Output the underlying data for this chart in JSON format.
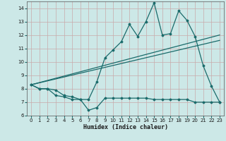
{
  "xlabel": "Humidex (Indice chaleur)",
  "xlim": [
    -0.5,
    23.5
  ],
  "ylim": [
    6,
    14.5
  ],
  "yticks": [
    6,
    7,
    8,
    9,
    10,
    11,
    12,
    13,
    14
  ],
  "xticks": [
    0,
    1,
    2,
    3,
    4,
    5,
    6,
    7,
    8,
    9,
    10,
    11,
    12,
    13,
    14,
    15,
    16,
    17,
    18,
    19,
    20,
    21,
    22,
    23
  ],
  "bg_color": "#cce8e7",
  "grid_color": "#b8d8d6",
  "line_color": "#1a6b6b",
  "main_x": [
    0,
    1,
    2,
    3,
    4,
    5,
    6,
    7,
    8,
    9,
    10,
    11,
    12,
    13,
    14,
    15,
    16,
    17,
    18,
    19,
    20,
    21,
    22,
    23
  ],
  "main_y": [
    8.3,
    8.0,
    8.0,
    7.9,
    7.5,
    7.4,
    7.2,
    7.2,
    8.5,
    10.3,
    10.9,
    11.5,
    12.8,
    11.9,
    13.0,
    14.4,
    12.0,
    12.1,
    13.8,
    13.1,
    11.9,
    9.7,
    8.2,
    7.0
  ],
  "min_x": [
    0,
    1,
    2,
    3,
    4,
    5,
    6,
    7,
    8,
    9,
    10,
    11,
    12,
    13,
    14,
    15,
    16,
    17,
    18,
    19,
    20,
    21,
    22,
    23
  ],
  "min_y": [
    8.3,
    8.0,
    8.0,
    7.5,
    7.4,
    7.2,
    7.2,
    6.4,
    6.6,
    7.3,
    7.3,
    7.3,
    7.3,
    7.3,
    7.3,
    7.2,
    7.2,
    7.2,
    7.2,
    7.2,
    7.0,
    7.0,
    7.0,
    7.0
  ],
  "trend1_x": [
    0,
    23
  ],
  "trend1_y": [
    8.3,
    12.0
  ],
  "trend2_x": [
    0,
    23
  ],
  "trend2_y": [
    8.3,
    11.6
  ]
}
